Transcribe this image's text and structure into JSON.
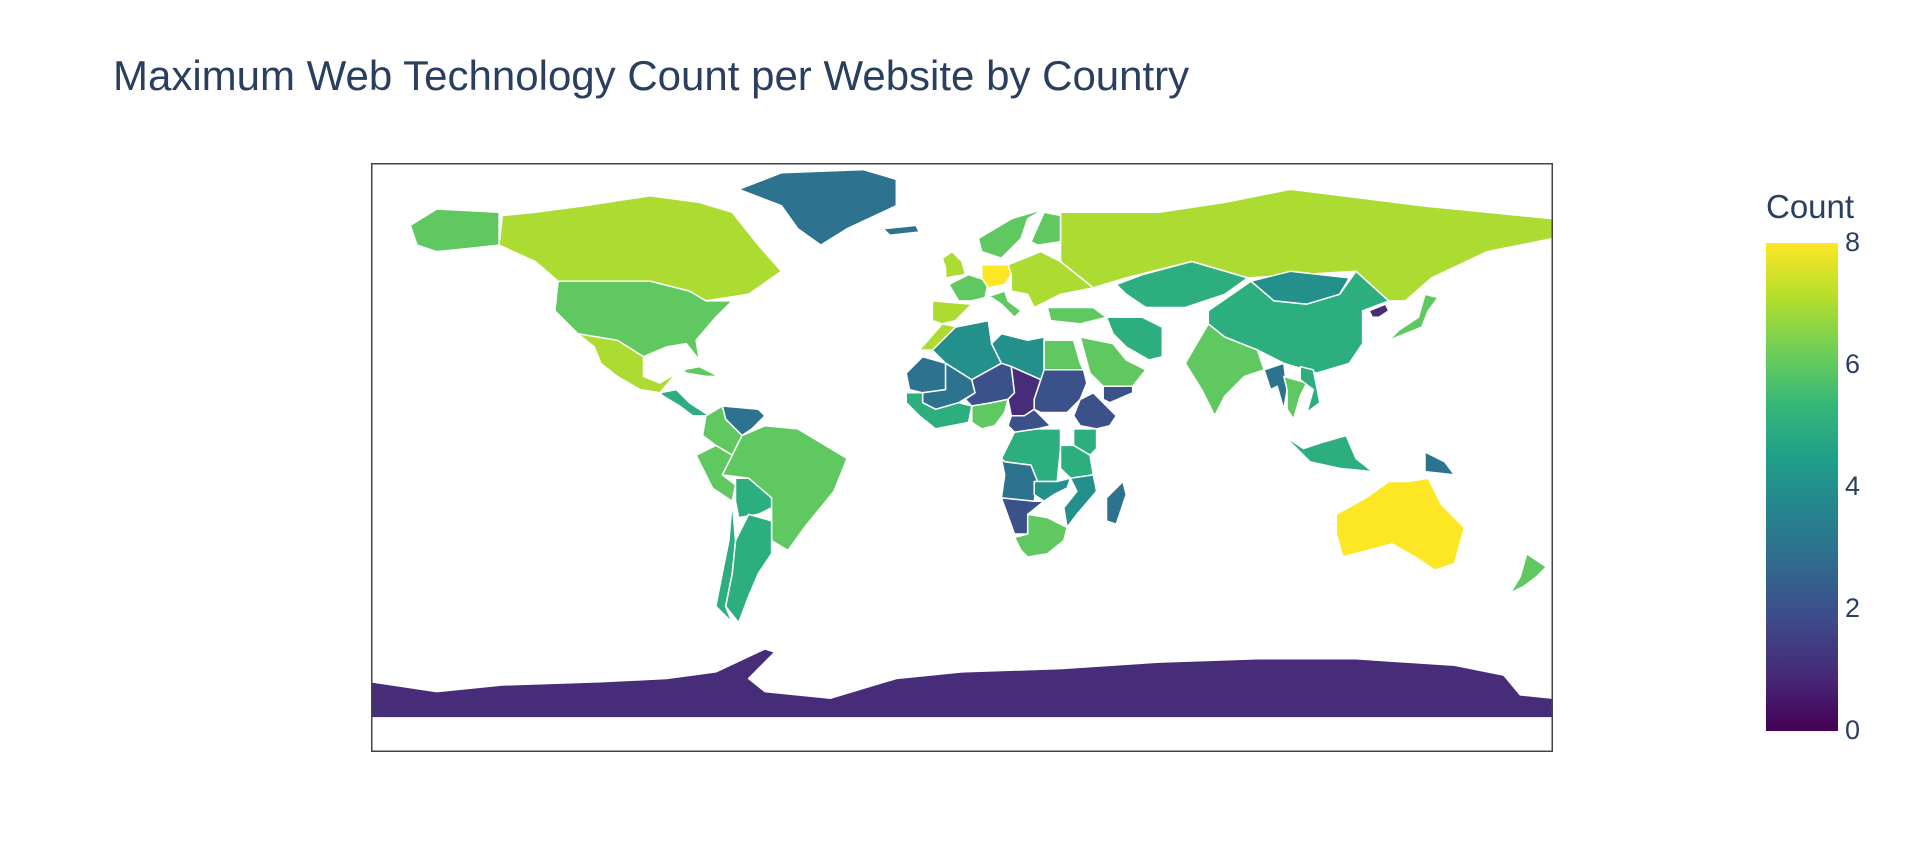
{
  "title": "Maximum Web Technology Count per Website by Country",
  "colorbar": {
    "title": "Count",
    "min": 0,
    "max": 8,
    "ticks": [
      "0",
      "2",
      "4",
      "6",
      "8"
    ],
    "colorscale": [
      "#440154",
      "#482878",
      "#3e4989",
      "#31688e",
      "#26828e",
      "#1f9e89",
      "#35b779",
      "#6ece58",
      "#b5de2b",
      "#fde725"
    ]
  },
  "map": {
    "projection": "equirectangular",
    "border_color": "#ffffff",
    "frame_color": "#444444",
    "background": "#ffffff"
  },
  "chart_data": {
    "type": "choropleth",
    "title": "Maximum Web Technology Count per Website by Country",
    "color_label": "Count",
    "range": [
      0,
      8
    ],
    "regions": [
      {
        "name": "Canada",
        "value": 7
      },
      {
        "name": "United States",
        "value": 6
      },
      {
        "name": "Alaska",
        "value": 6
      },
      {
        "name": "Greenland",
        "value": 3
      },
      {
        "name": "Iceland",
        "value": 3
      },
      {
        "name": "Mexico",
        "value": 7
      },
      {
        "name": "Central America",
        "value": 5
      },
      {
        "name": "Cuba",
        "value": 6
      },
      {
        "name": "Venezuela",
        "value": 3
      },
      {
        "name": "Colombia",
        "value": 6
      },
      {
        "name": "Brazil",
        "value": 6
      },
      {
        "name": "Peru",
        "value": 6
      },
      {
        "name": "Bolivia",
        "value": 5
      },
      {
        "name": "Argentina",
        "value": 5
      },
      {
        "name": "Chile",
        "value": 5
      },
      {
        "name": "Russia",
        "value": 7
      },
      {
        "name": "Scandinavia",
        "value": 6
      },
      {
        "name": "Finland",
        "value": 6
      },
      {
        "name": "United Kingdom",
        "value": 7
      },
      {
        "name": "France",
        "value": 6
      },
      {
        "name": "Spain",
        "value": 7
      },
      {
        "name": "Germany",
        "value": 8
      },
      {
        "name": "Italy",
        "value": 6
      },
      {
        "name": "Eastern Europe",
        "value": 7
      },
      {
        "name": "Turkey",
        "value": 6
      },
      {
        "name": "Kazakhstan",
        "value": 5
      },
      {
        "name": "Mongolia",
        "value": 4
      },
      {
        "name": "China",
        "value": 5
      },
      {
        "name": "India",
        "value": 6
      },
      {
        "name": "Iran",
        "value": 5
      },
      {
        "name": "Saudi Arabia",
        "value": 6
      },
      {
        "name": "Yemen",
        "value": 2
      },
      {
        "name": "Japan",
        "value": 6
      },
      {
        "name": "North Korea",
        "value": 1
      },
      {
        "name": "Myanmar",
        "value": 3
      },
      {
        "name": "Thailand",
        "value": 6
      },
      {
        "name": "Vietnam",
        "value": 5
      },
      {
        "name": "Indonesia",
        "value": 5
      },
      {
        "name": "Papua New Guinea",
        "value": 3
      },
      {
        "name": "Australia",
        "value": 8
      },
      {
        "name": "New Zealand",
        "value": 6
      },
      {
        "name": "Morocco",
        "value": 7
      },
      {
        "name": "Algeria",
        "value": 4
      },
      {
        "name": "Libya",
        "value": 4
      },
      {
        "name": "Egypt",
        "value": 6
      },
      {
        "name": "Mauritania",
        "value": 3
      },
      {
        "name": "Mali",
        "value": 3
      },
      {
        "name": "Niger",
        "value": 2
      },
      {
        "name": "Chad",
        "value": 1
      },
      {
        "name": "Sudan",
        "value": 2
      },
      {
        "name": "Ethiopia",
        "value": 2
      },
      {
        "name": "West Africa",
        "value": 5
      },
      {
        "name": "Nigeria",
        "value": 6
      },
      {
        "name": "Central African Republic",
        "value": 2
      },
      {
        "name": "DR Congo",
        "value": 5
      },
      {
        "name": "Kenya",
        "value": 5
      },
      {
        "name": "Tanzania",
        "value": 5
      },
      {
        "name": "Angola",
        "value": 3
      },
      {
        "name": "Zambia",
        "value": 4
      },
      {
        "name": "Mozambique",
        "value": 4
      },
      {
        "name": "Namibia",
        "value": 2
      },
      {
        "name": "South Africa",
        "value": 6
      },
      {
        "name": "Madagascar",
        "value": 3
      },
      {
        "name": "Antarctica",
        "value": 1
      }
    ]
  }
}
